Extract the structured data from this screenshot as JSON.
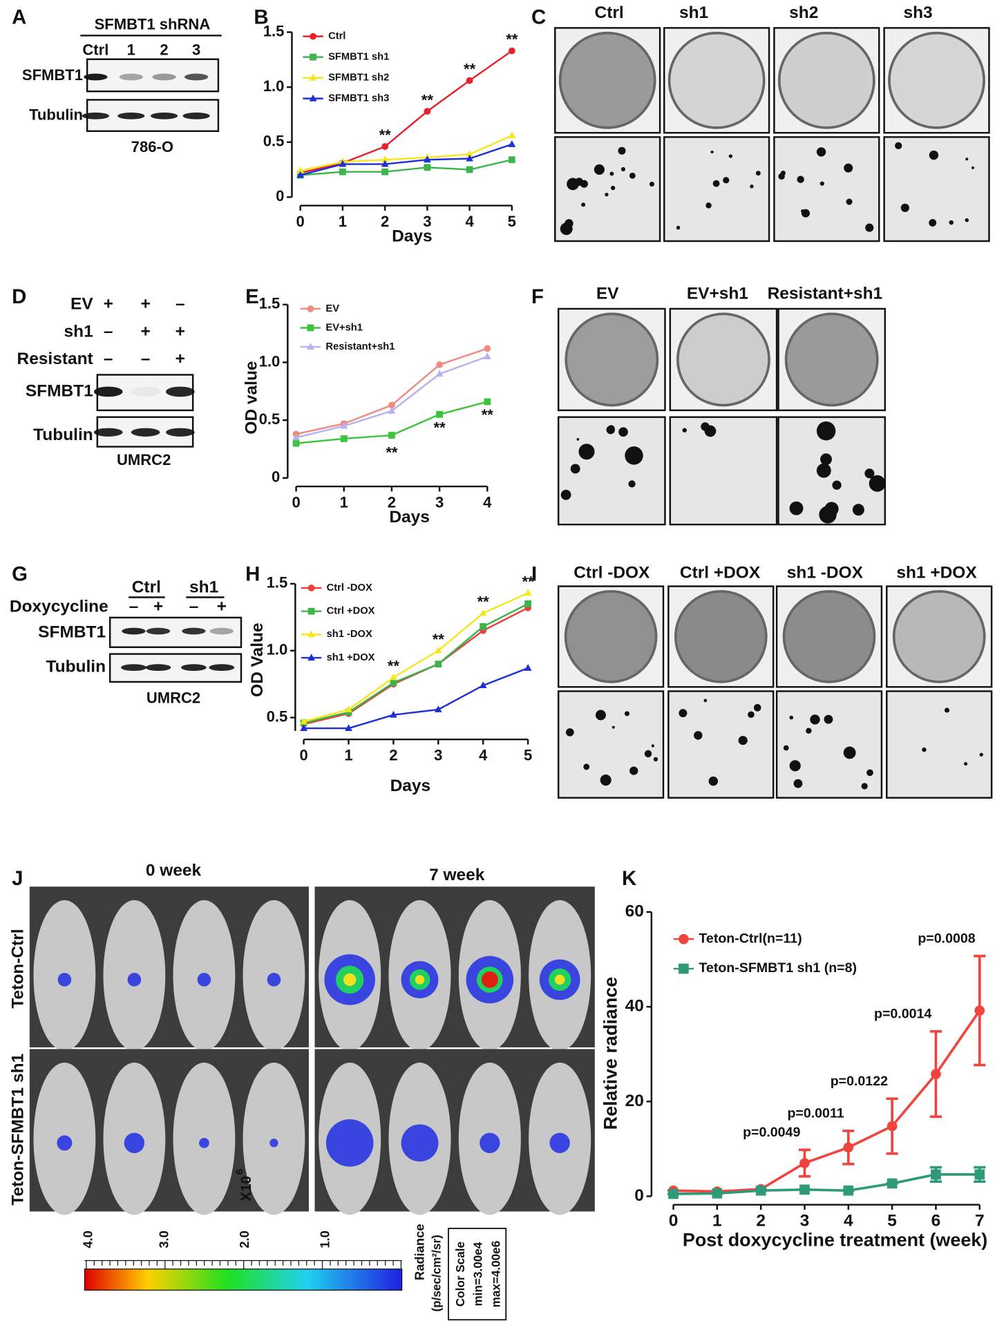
{
  "panel_letters": [
    "A",
    "B",
    "C",
    "D",
    "E",
    "F",
    "G",
    "H",
    "I",
    "J",
    "K"
  ],
  "blot_A": {
    "header": "SFMBT1 shRNA",
    "lanes": [
      "Ctrl",
      "1",
      "2",
      "3"
    ],
    "rows": [
      "SFMBT1",
      "Tubulin"
    ],
    "cell_line": "786-O"
  },
  "blot_D": {
    "conditions": [
      {
        "label": "EV",
        "signs": [
          "+",
          "+",
          "–"
        ]
      },
      {
        "label": "sh1",
        "signs": [
          "–",
          "+",
          "+"
        ]
      },
      {
        "label": "Resistant",
        "signs": [
          "–",
          "–",
          "+"
        ]
      }
    ],
    "rows": [
      "SFMBT1",
      "Tubulin"
    ],
    "cell_line": "UMRC2"
  },
  "blot_G": {
    "groups": [
      "Ctrl",
      "sh1"
    ],
    "treatment": "Doxycycline",
    "signs": [
      "–",
      "+",
      "–",
      "+"
    ],
    "rows": [
      "SFMBT1",
      "Tubulin"
    ],
    "cell_line": "UMRC2"
  },
  "images_C": {
    "labels": [
      "Ctrl",
      "sh1",
      "sh2",
      "sh3"
    ]
  },
  "images_F": {
    "labels": [
      "EV",
      "EV+sh1",
      "Resistant+sh1"
    ]
  },
  "images_I": {
    "labels": [
      "Ctrl -DOX",
      "Ctrl +DOX",
      "sh1 -DOX",
      "sh1 +DOX"
    ]
  },
  "imaging_J": {
    "timepoints": [
      "0 week",
      "7 week"
    ],
    "groups": [
      "Teton-Ctrl",
      "Teton-SFMBT1 sh1"
    ],
    "scale_multiplier": "X10",
    "scale_exponent": "6",
    "scale_ticks": [
      "4.0",
      "3.0",
      "2.0",
      "1.0"
    ],
    "radiance_label": "Radiance",
    "radiance_unit": "(p/sec/cm²/sr)",
    "color_scale": [
      "Color Scale",
      "min=3.00e4",
      "max=4.00e6"
    ]
  },
  "chart_data": [
    {
      "type": "line",
      "xlabel": "Days",
      "x": [
        0,
        1,
        2,
        3,
        4,
        5
      ],
      "xlim": [
        0,
        5
      ],
      "xticks": [
        0,
        1,
        2,
        3,
        4,
        5
      ],
      "ylim": [
        0,
        1.5
      ],
      "yticks": [
        0,
        0.5,
        {
          "value": 1,
          "label": "1.0"
        },
        1.5
      ],
      "series": [
        {
          "name": "Ctrl",
          "color": "#e8202a",
          "marker": "circle",
          "values": [
            0.22,
            0.31,
            0.46,
            0.78,
            1.06,
            1.33
          ]
        },
        {
          "name": "SFMBT1 sh1",
          "color": "#3cb44b",
          "marker": "square",
          "values": [
            0.2,
            0.23,
            0.23,
            0.27,
            0.25,
            0.34
          ]
        },
        {
          "name": "SFMBT1 sh2",
          "color": "#f5e61e",
          "marker": "triangle",
          "values": [
            0.24,
            0.32,
            0.34,
            0.36,
            0.39,
            0.56
          ]
        },
        {
          "name": "SFMBT1 sh3",
          "color": "#1f2fd6",
          "marker": "triangle",
          "values": [
            0.2,
            0.3,
            0.3,
            0.34,
            0.35,
            0.48
          ]
        }
      ],
      "annotations": [
        {
          "text": "**",
          "x": 2
        },
        {
          "text": "**",
          "x": 3
        },
        {
          "text": "**",
          "x": 4
        },
        {
          "text": "**",
          "x": 5
        }
      ]
    },
    {
      "type": "line",
      "xlabel": "Days",
      "ylabel": "OD value",
      "x": [
        0,
        1,
        2,
        3,
        4
      ],
      "xlim": [
        0,
        4
      ],
      "xticks": [
        0,
        1,
        2,
        3,
        4
      ],
      "ylim": [
        0,
        1.5
      ],
      "yticks": [
        0,
        0.5,
        {
          "value": 1,
          "label": "1.0"
        },
        1.5
      ],
      "series": [
        {
          "name": "EV",
          "color": "#f08a80",
          "marker": "circle",
          "values": [
            0.38,
            0.47,
            0.63,
            0.98,
            1.12
          ]
        },
        {
          "name": "EV+sh1",
          "color": "#3cc43c",
          "marker": "square",
          "values": [
            0.3,
            0.34,
            0.37,
            0.55,
            0.66
          ]
        },
        {
          "name": "Resistant+sh1",
          "color": "#b8b0f0",
          "marker": "triangle",
          "values": [
            0.35,
            0.45,
            0.58,
            0.9,
            1.05
          ]
        }
      ],
      "annotations": [
        {
          "text": "**",
          "x": 2
        },
        {
          "text": "**",
          "x": 3
        },
        {
          "text": "**",
          "x": 4
        }
      ]
    },
    {
      "type": "line",
      "xlabel": "Days",
      "ylabel": "OD Value",
      "x": [
        0,
        1,
        2,
        3,
        4,
        5
      ],
      "xlim": [
        0,
        5
      ],
      "xticks": [
        0,
        1,
        2,
        3,
        4,
        5
      ],
      "ylim": [
        0.4,
        1.5
      ],
      "yticks": [
        0.5,
        {
          "value": 1,
          "label": "1.0"
        },
        1.5
      ],
      "series": [
        {
          "name": "Ctrl -DOX",
          "color": "#e8403a",
          "marker": "circle",
          "values": [
            0.45,
            0.53,
            0.75,
            0.9,
            1.15,
            1.32
          ]
        },
        {
          "name": "Ctrl +DOX",
          "color": "#3cb44b",
          "marker": "square",
          "values": [
            0.46,
            0.54,
            0.76,
            0.9,
            1.18,
            1.35
          ]
        },
        {
          "name": "sh1 -DOX",
          "color": "#f5e61e",
          "marker": "triangle",
          "values": [
            0.47,
            0.56,
            0.8,
            1.0,
            1.28,
            1.43
          ]
        },
        {
          "name": "sh1 +DOX",
          "color": "#1f2fd6",
          "marker": "triangle",
          "values": [
            0.42,
            0.42,
            0.52,
            0.56,
            0.74,
            0.87
          ]
        }
      ],
      "annotations": [
        {
          "text": "**",
          "x": 2
        },
        {
          "text": "**",
          "x": 3
        },
        {
          "text": "**",
          "x": 4
        },
        {
          "text": "**",
          "x": 5
        }
      ]
    },
    {
      "type": "line",
      "xlabel": "Post doxycycline treatment (week)",
      "ylabel": "Relative radiance",
      "x": [
        0,
        1,
        2,
        3,
        4,
        5,
        6,
        7
      ],
      "xlim": [
        -0.5,
        7.1
      ],
      "xticks": [
        0,
        1,
        2,
        3,
        4,
        5,
        6,
        7
      ],
      "ylim": [
        0,
        60
      ],
      "yticks": [
        0,
        20,
        40,
        60
      ],
      "series": [
        {
          "name": "Teton-Ctrl(n=11)",
          "color": "#f0453f",
          "marker": "circle",
          "values": [
            1.2,
            1,
            1.5,
            7,
            10.3,
            14.8,
            25.8,
            39.2
          ],
          "errors": [
            0,
            0,
            0,
            2.8,
            3.5,
            5.8,
            9,
            11.5
          ]
        },
        {
          "name": "Teton-SFMBT1 sh1 (n=8)",
          "color": "#2e9a78",
          "marker": "square",
          "values": [
            0.5,
            0.6,
            1.2,
            1.4,
            1.2,
            2.7,
            4.6,
            4.6
          ],
          "errors": [
            0,
            0,
            0,
            0,
            0,
            0,
            1.5,
            1.5
          ]
        }
      ],
      "annotations": [
        {
          "text": "p=0.0049",
          "x": 3
        },
        {
          "text": "p=0.0011",
          "x": 4
        },
        {
          "text": "p=0.0122",
          "x": 5
        },
        {
          "text": "p=0.0014",
          "x": 6
        },
        {
          "text": "p=0.0008",
          "x": 7
        }
      ]
    }
  ]
}
